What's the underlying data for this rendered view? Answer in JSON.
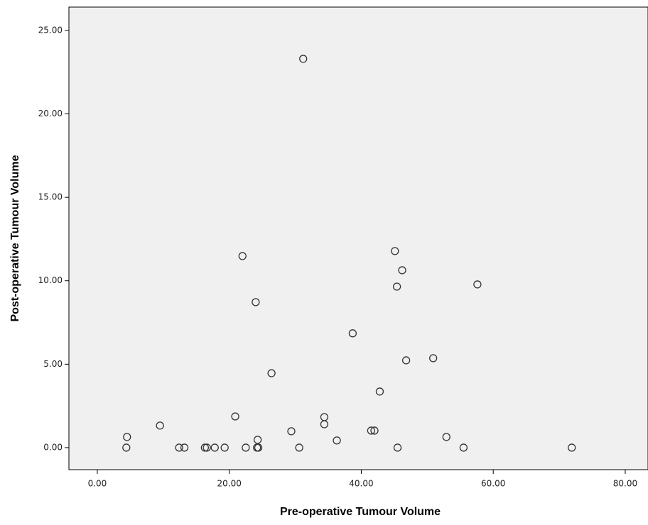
{
  "chart_data": {
    "type": "scatter",
    "x_label": "Pre-operative Tumour Volume",
    "y_label": "Post-operative Tumour Volume",
    "x": [
      4.5,
      4.4,
      9.5,
      12.4,
      13.2,
      16.3,
      16.6,
      17.8,
      19.3,
      20.9,
      22.0,
      22.5,
      24.0,
      24.3,
      24.2,
      24.4,
      26.4,
      29.4,
      30.6,
      31.2,
      34.4,
      34.4,
      36.3,
      38.7,
      41.5,
      42.0,
      42.8,
      45.1,
      45.5,
      45.4,
      46.2,
      46.8,
      50.9,
      52.9,
      55.5,
      57.6,
      71.9
    ],
    "values": [
      0.64,
      0,
      1.32,
      0,
      0,
      0,
      0,
      0,
      0,
      1.87,
      11.48,
      0,
      8.72,
      0.47,
      0,
      0,
      4.46,
      0.98,
      0,
      23.3,
      1.83,
      1.4,
      0.43,
      6.85,
      1.02,
      1.02,
      3.36,
      11.78,
      0,
      9.65,
      10.63,
      5.23,
      5.36,
      0.64,
      0,
      9.78,
      0
    ],
    "xlim": [
      -4.3,
      83.45
    ],
    "ylim": [
      -1.32,
      26.4
    ],
    "xticks": [
      {
        "value": 0,
        "label": "0.00"
      },
      {
        "value": 20,
        "label": "20.00"
      },
      {
        "value": 40,
        "label": "40.00"
      },
      {
        "value": 60,
        "label": "60.00"
      },
      {
        "value": 80,
        "label": "80.00"
      }
    ],
    "yticks": [
      {
        "value": 0,
        "label": "0.00"
      },
      {
        "value": 5,
        "label": "5.00"
      },
      {
        "value": 10,
        "label": "10.00"
      },
      {
        "value": 15,
        "label": "15.00"
      },
      {
        "value": 20,
        "label": "20.00"
      },
      {
        "value": 25,
        "label": "25.00"
      }
    ],
    "marker_color": "#333333",
    "plot_background": "#f0f0f0"
  }
}
